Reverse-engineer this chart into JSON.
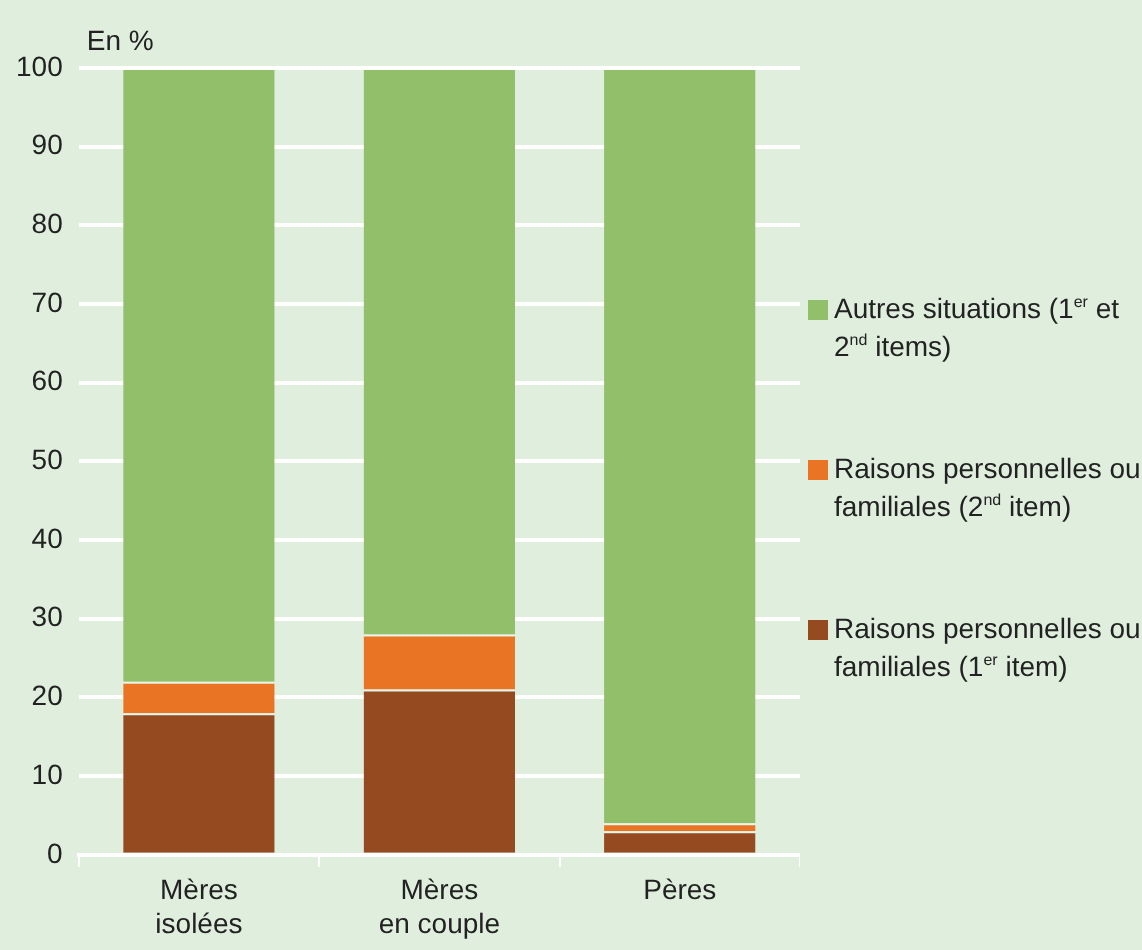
{
  "chart_data": {
    "type": "bar",
    "stacked": true,
    "ylabel": "En %",
    "categories": [
      "Mères isolées",
      "Mères en couple",
      "Pères"
    ],
    "series": [
      {
        "name": "Raisons personnelles ou familiales (1$^{er}$ item)",
        "color": "#954a20",
        "values": [
          18,
          21,
          3
        ]
      },
      {
        "name": "Raisons personnelles ou familiales (2$^{nd}$ item)",
        "color": "#e97424",
        "values": [
          4,
          7,
          1
        ]
      },
      {
        "name": "Autres situations (1$^{er}$ et 2$^{nd}$ items)",
        "color": "#92bf6a",
        "values": [
          78,
          72,
          96
        ]
      }
    ],
    "ylim": [
      0,
      100
    ],
    "yticks": [
      0,
      10,
      20,
      30,
      40,
      50,
      60,
      70,
      80,
      90,
      100
    ],
    "grid": "y",
    "legend": "right"
  }
}
